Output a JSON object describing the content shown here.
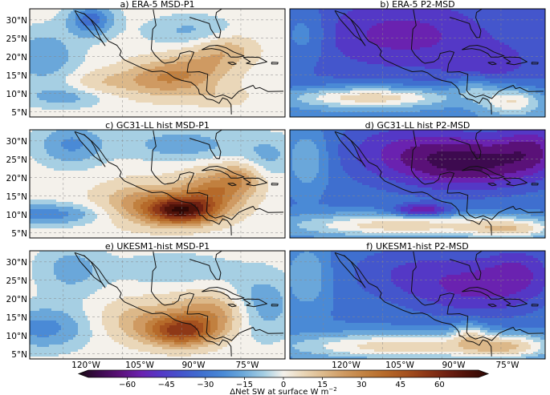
{
  "panels": [
    {
      "id": "a",
      "title": "a)  ERA-5 MSD-P1",
      "pattern": "msd_obs"
    },
    {
      "id": "b",
      "title": "b)  ERA-5 P2-MSD",
      "pattern": "p2_obs"
    },
    {
      "id": "c",
      "title": "c)  GC31-LL hist MSD-P1",
      "pattern": "msd_gc"
    },
    {
      "id": "d",
      "title": "d)  GC31-LL hist P2-MSD",
      "pattern": "p2_gc"
    },
    {
      "id": "e",
      "title": "e)  UKESM1-hist MSD-P1",
      "pattern": "msd_uk"
    },
    {
      "id": "f",
      "title": "f)  UKESM1-hist P2-MSD",
      "pattern": "p2_uk"
    }
  ],
  "lat_ticks": [
    "30°N",
    "25°N",
    "20°N",
    "15°N",
    "10°N",
    "5°N"
  ],
  "lon_ticks": [
    "120°W",
    "105°W",
    "90°W",
    "75°W"
  ],
  "colorbar": {
    "label": "ΔNet SW at surface W m",
    "label_exp": "−2",
    "ticks": [
      "−60",
      "−45",
      "−30",
      "−15",
      "0",
      "15",
      "30",
      "45",
      "60"
    ],
    "tick_values": [
      -60,
      -45,
      -30,
      -15,
      0,
      15,
      30,
      45,
      60
    ],
    "range": [
      -75,
      75
    ],
    "colors": {
      "-75": "#1a0a14",
      "-67": "#3d0a4f",
      "-60": "#5a1178",
      "-52": "#6a22b0",
      "-45": "#5438c6",
      "-37": "#4456cc",
      "-30": "#3f6fcf",
      "-22": "#4a8ad6",
      "-15": "#6aa7da",
      "-7": "#a6cfe3",
      "0": "#f4f1eb",
      "7": "#ead7b9",
      "15": "#dcb889",
      "22": "#cf9a62",
      "30": "#c1803f",
      "37": "#b66a2a",
      "45": "#a5511f",
      "52": "#8e3817",
      "60": "#6e2012",
      "67": "#4f1209",
      "75": "#2e0805"
    }
  }
}
